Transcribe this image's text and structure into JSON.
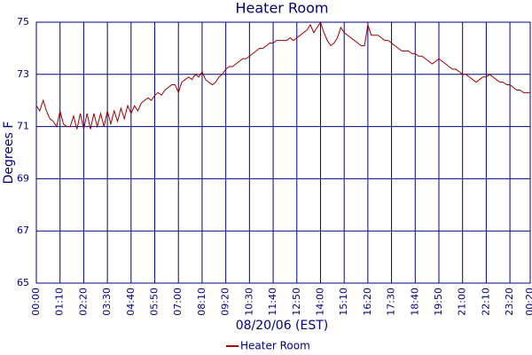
{
  "chart_data": {
    "type": "line",
    "title": "Heater Room",
    "x_label": "08/20/06 (EST)",
    "y_label": "Degrees F",
    "x": [
      0,
      10,
      20,
      30,
      40,
      50,
      60,
      70,
      80,
      90,
      100,
      110,
      120,
      130,
      140,
      150,
      160,
      170,
      180,
      190,
      200,
      210,
      220,
      230,
      240,
      250,
      260,
      270,
      280,
      290,
      300,
      310,
      320,
      330,
      340,
      350,
      360,
      370,
      380,
      390,
      400,
      410,
      420,
      430,
      440,
      450,
      460,
      470,
      480,
      490,
      500,
      510,
      520,
      530,
      540,
      550,
      560,
      570,
      580,
      590,
      600,
      610,
      620,
      630,
      640,
      650,
      660,
      670,
      680,
      690,
      700,
      710,
      720,
      730,
      740,
      750,
      760,
      770,
      780,
      790,
      800,
      810,
      820,
      830,
      840,
      850,
      860,
      870,
      880,
      890,
      900,
      910,
      920,
      930,
      940,
      950,
      960,
      970,
      980,
      990,
      1000,
      1010,
      1020,
      1030,
      1040,
      1050,
      1060,
      1070,
      1080,
      1090,
      1100,
      1110,
      1120,
      1130,
      1140,
      1150,
      1160,
      1170,
      1180,
      1190,
      1200,
      1210,
      1220,
      1230,
      1240,
      1250,
      1260,
      1270,
      1280,
      1290,
      1300,
      1310,
      1320,
      1330,
      1340,
      1350,
      1360,
      1370,
      1380,
      1390,
      1400,
      1410,
      1420,
      1430,
      1440,
      1450,
      1460
    ],
    "series": [
      {
        "name": "Heater Room",
        "color": "#a00000",
        "values": [
          71.8,
          71.6,
          72.0,
          71.6,
          71.3,
          71.2,
          71.0,
          71.6,
          71.1,
          71.0,
          71.0,
          71.4,
          70.9,
          71.5,
          70.9,
          71.5,
          70.9,
          71.5,
          71.0,
          71.5,
          71.0,
          71.6,
          71.1,
          71.6,
          71.2,
          71.7,
          71.3,
          71.8,
          71.5,
          71.8,
          71.6,
          71.9,
          72.0,
          72.1,
          72.0,
          72.2,
          72.3,
          72.2,
          72.4,
          72.5,
          72.6,
          72.6,
          72.3,
          72.7,
          72.8,
          72.9,
          72.8,
          73.0,
          72.9,
          73.1,
          72.8,
          72.7,
          72.6,
          72.7,
          72.9,
          73.0,
          73.2,
          73.3,
          73.3,
          73.4,
          73.5,
          73.6,
          73.6,
          73.7,
          73.8,
          73.9,
          74.0,
          74.0,
          74.1,
          74.2,
          74.2,
          74.3,
          74.3,
          74.3,
          74.3,
          74.4,
          74.3,
          74.4,
          74.5,
          74.6,
          74.7,
          74.9,
          74.6,
          74.8,
          75.0,
          74.6,
          74.3,
          74.1,
          74.2,
          74.4,
          74.8,
          74.6,
          74.5,
          74.4,
          74.3,
          74.2,
          74.1,
          74.1,
          74.9,
          74.5,
          74.5,
          74.5,
          74.4,
          74.3,
          74.3,
          74.2,
          74.1,
          74.0,
          73.9,
          73.9,
          73.9,
          73.8,
          73.8,
          73.7,
          73.7,
          73.6,
          73.5,
          73.4,
          73.5,
          73.6,
          73.5,
          73.4,
          73.3,
          73.2,
          73.2,
          73.1,
          73.0,
          73.0,
          72.9,
          72.8,
          72.7,
          72.8,
          72.9,
          72.9,
          73.0,
          72.9,
          72.8,
          72.7,
          72.7,
          72.6,
          72.6,
          72.5,
          72.4,
          72.4,
          72.3,
          72.3,
          72.3
        ]
      }
    ],
    "xlim": [
      0,
      1460
    ],
    "xticks": [
      {
        "value": 0,
        "label": "00:00"
      },
      {
        "value": 70,
        "label": "01:10"
      },
      {
        "value": 140,
        "label": "02:20"
      },
      {
        "value": 210,
        "label": "03:30"
      },
      {
        "value": 280,
        "label": "04:40"
      },
      {
        "value": 350,
        "label": "05:50"
      },
      {
        "value": 420,
        "label": "07:00"
      },
      {
        "value": 490,
        "label": "08:10"
      },
      {
        "value": 560,
        "label": "09:20"
      },
      {
        "value": 630,
        "label": "10:30"
      },
      {
        "value": 700,
        "label": "11:40"
      },
      {
        "value": 770,
        "label": "12:50"
      },
      {
        "value": 840,
        "label": "14:00"
      },
      {
        "value": 910,
        "label": "15:10"
      },
      {
        "value": 980,
        "label": "16:20"
      },
      {
        "value": 1050,
        "label": "17:30"
      },
      {
        "value": 1120,
        "label": "18:40"
      },
      {
        "value": 1190,
        "label": "19:50"
      },
      {
        "value": 1260,
        "label": "21:00"
      },
      {
        "value": 1330,
        "label": "22:10"
      },
      {
        "value": 1400,
        "label": "23:20"
      },
      {
        "value": 1460,
        "label": "00:20"
      }
    ],
    "ylim": [
      65,
      75
    ],
    "yticks": [
      65,
      67,
      69,
      71,
      73,
      75
    ],
    "grid": true,
    "grid_color": "#000080",
    "legend": "bottom"
  }
}
